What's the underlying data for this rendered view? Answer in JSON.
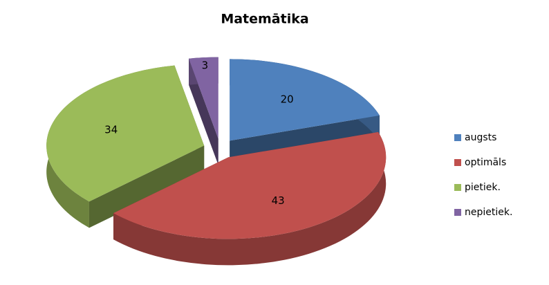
{
  "chart_data": {
    "type": "pie",
    "title": "Matemātika",
    "categories": [
      "augsts",
      "optimāls",
      "pietiek.",
      "nepietiek."
    ],
    "values": [
      20,
      43,
      34,
      3
    ],
    "colors": [
      "#4f81bd",
      "#c0504d",
      "#9bbb59",
      "#8064a2"
    ],
    "legend": "right",
    "exploded": true,
    "3d": true
  }
}
